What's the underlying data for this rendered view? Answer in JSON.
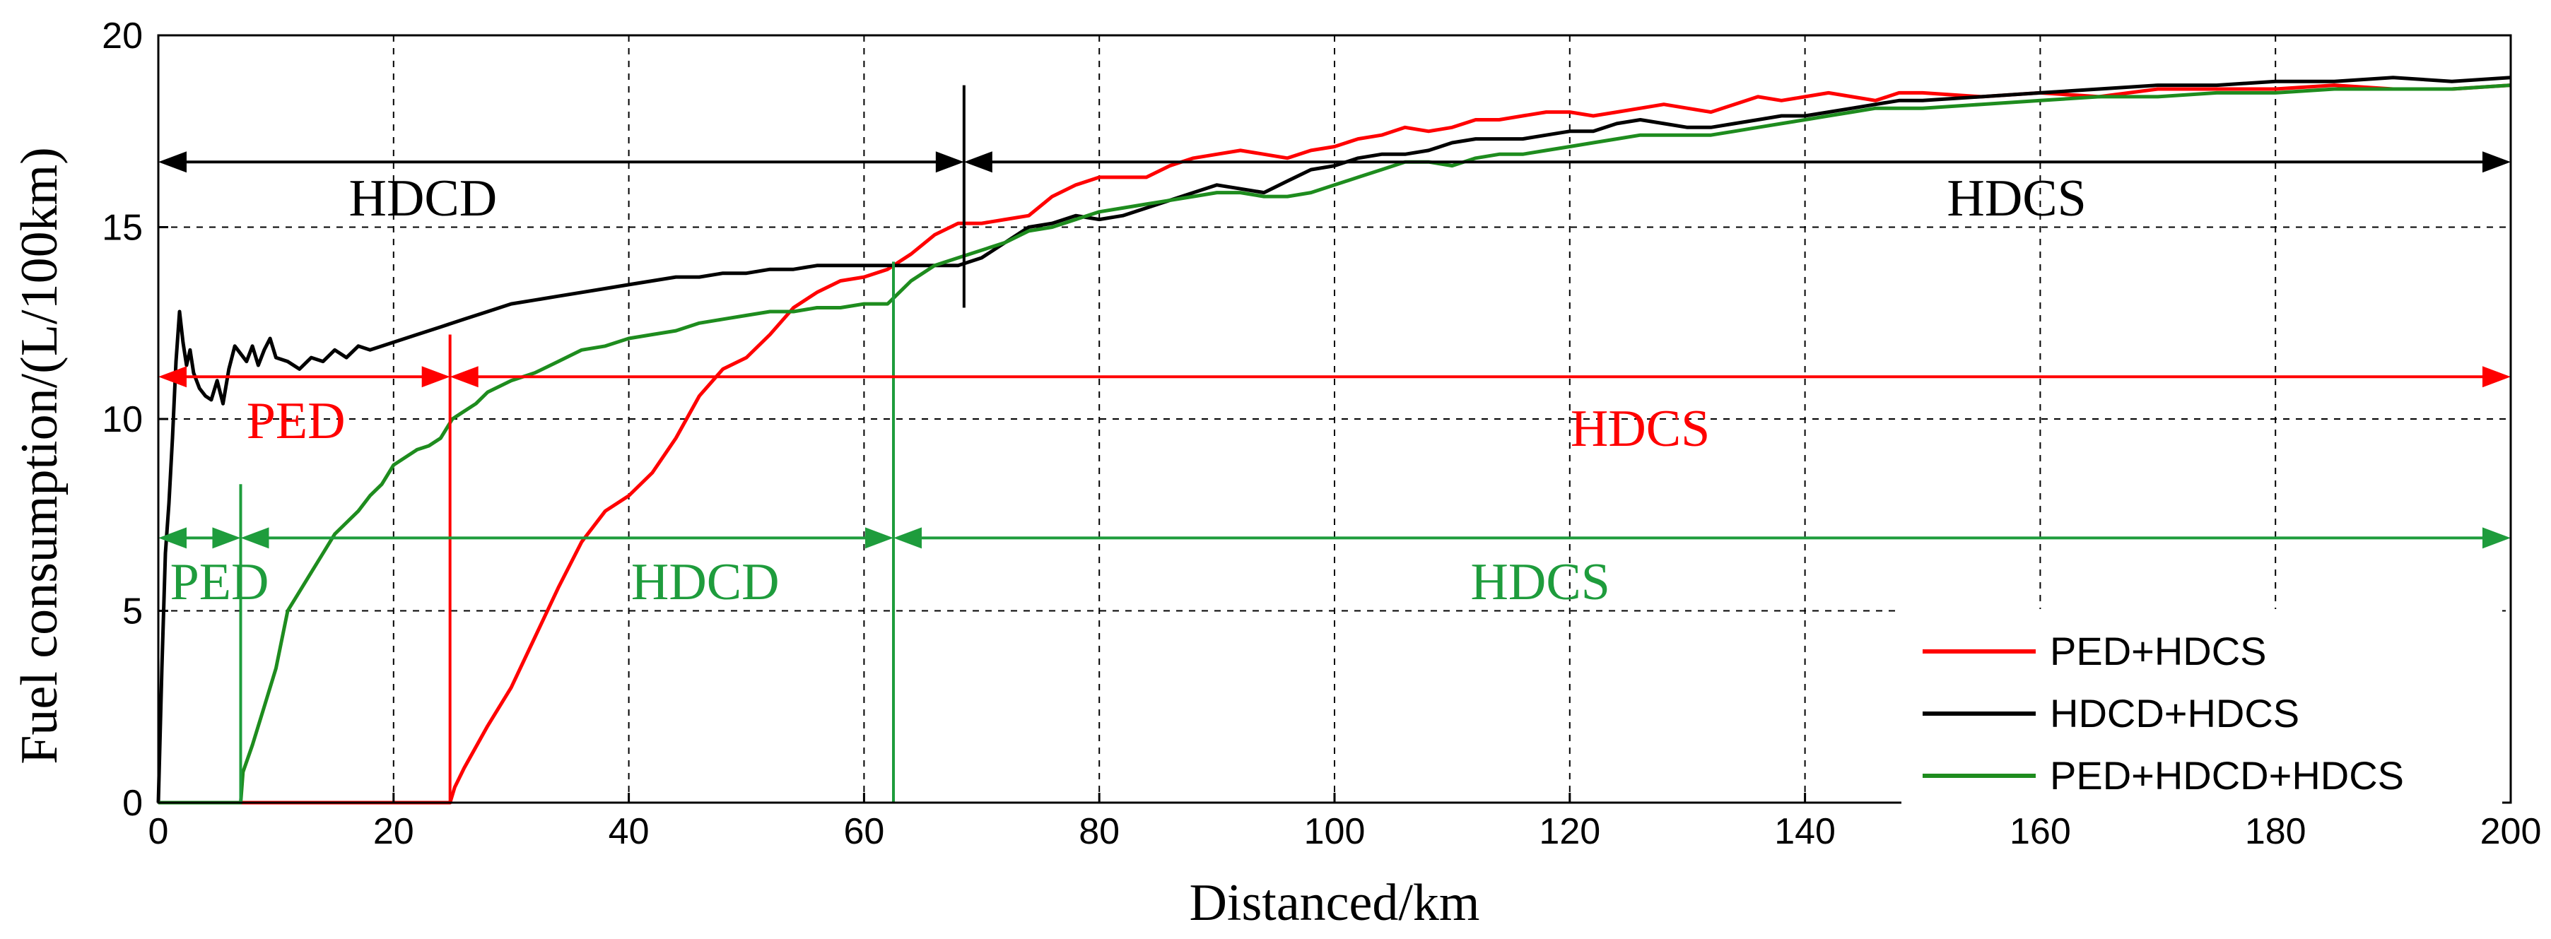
{
  "chart_data": {
    "type": "line",
    "xlabel": "Distanced/km",
    "ylabel": "Fuel consumption/(L/100km)",
    "xlim": [
      0,
      200
    ],
    "ylim": [
      0,
      20
    ],
    "x_ticks": [
      "0",
      "20",
      "40",
      "60",
      "80",
      "100",
      "120",
      "140",
      "160",
      "180",
      "200"
    ],
    "y_ticks": [
      "0",
      "5",
      "10",
      "15",
      "20"
    ],
    "grid": true,
    "legend_position": "bottom-right",
    "series": [
      {
        "name": "PED+HDCS",
        "color": "#ff0000",
        "points": [
          [
            0,
            0
          ],
          [
            24.8,
            0
          ],
          [
            25.2,
            0.4
          ],
          [
            26,
            0.9
          ],
          [
            28,
            2
          ],
          [
            30,
            3
          ],
          [
            32,
            4.3
          ],
          [
            34,
            5.6
          ],
          [
            36,
            6.8
          ],
          [
            38,
            7.6
          ],
          [
            40,
            8
          ],
          [
            42,
            8.6
          ],
          [
            44,
            9.5
          ],
          [
            46,
            10.6
          ],
          [
            48,
            11.3
          ],
          [
            50,
            11.6
          ],
          [
            52,
            12.2
          ],
          [
            54,
            12.9
          ],
          [
            56,
            13.3
          ],
          [
            58,
            13.6
          ],
          [
            60,
            13.7
          ],
          [
            62,
            13.9
          ],
          [
            64,
            14.3
          ],
          [
            66,
            14.8
          ],
          [
            68,
            15.1
          ],
          [
            70,
            15.1
          ],
          [
            72,
            15.2
          ],
          [
            74,
            15.3
          ],
          [
            76,
            15.8
          ],
          [
            78,
            16.1
          ],
          [
            80,
            16.3
          ],
          [
            82,
            16.3
          ],
          [
            84,
            16.3
          ],
          [
            86,
            16.6
          ],
          [
            88,
            16.8
          ],
          [
            90,
            16.9
          ],
          [
            92,
            17.0
          ],
          [
            94,
            16.9
          ],
          [
            96,
            16.8
          ],
          [
            98,
            17.0
          ],
          [
            100,
            17.1
          ],
          [
            102,
            17.3
          ],
          [
            104,
            17.4
          ],
          [
            106,
            17.6
          ],
          [
            108,
            17.5
          ],
          [
            110,
            17.6
          ],
          [
            112,
            17.8
          ],
          [
            114,
            17.8
          ],
          [
            116,
            17.9
          ],
          [
            118,
            18.0
          ],
          [
            120,
            18.0
          ],
          [
            122,
            17.9
          ],
          [
            124,
            18.0
          ],
          [
            126,
            18.1
          ],
          [
            128,
            18.2
          ],
          [
            130,
            18.1
          ],
          [
            132,
            18.0
          ],
          [
            134,
            18.2
          ],
          [
            136,
            18.4
          ],
          [
            138,
            18.3
          ],
          [
            140,
            18.4
          ],
          [
            142,
            18.5
          ],
          [
            144,
            18.4
          ],
          [
            146,
            18.3
          ],
          [
            148,
            18.5
          ],
          [
            150,
            18.5
          ],
          [
            155,
            18.4
          ],
          [
            160,
            18.5
          ],
          [
            165,
            18.4
          ],
          [
            170,
            18.6
          ],
          [
            175,
            18.6
          ],
          [
            180,
            18.6
          ],
          [
            185,
            18.7
          ],
          [
            190,
            18.6
          ],
          [
            195,
            18.6
          ],
          [
            200,
            18.7
          ]
        ]
      },
      {
        "name": "HDCD+HDCS",
        "color": "#000000",
        "points": [
          [
            0,
            0
          ],
          [
            0.3,
            3.5
          ],
          [
            0.6,
            6.5
          ],
          [
            0.9,
            7.8
          ],
          [
            1.2,
            9.5
          ],
          [
            1.5,
            11.5
          ],
          [
            1.8,
            12.8
          ],
          [
            2.1,
            12
          ],
          [
            2.4,
            11.4
          ],
          [
            2.7,
            11.8
          ],
          [
            3,
            11.2
          ],
          [
            3.5,
            10.8
          ],
          [
            4,
            10.6
          ],
          [
            4.5,
            10.5
          ],
          [
            5,
            11
          ],
          [
            5.5,
            10.4
          ],
          [
            6,
            11.3
          ],
          [
            6.5,
            11.9
          ],
          [
            7,
            11.7
          ],
          [
            7.5,
            11.5
          ],
          [
            8,
            11.9
          ],
          [
            8.5,
            11.4
          ],
          [
            9,
            11.8
          ],
          [
            9.5,
            12.1
          ],
          [
            10,
            11.6
          ],
          [
            11,
            11.5
          ],
          [
            12,
            11.3
          ],
          [
            13,
            11.6
          ],
          [
            14,
            11.5
          ],
          [
            15,
            11.8
          ],
          [
            16,
            11.6
          ],
          [
            17,
            11.9
          ],
          [
            18,
            11.8
          ],
          [
            20,
            12
          ],
          [
            22,
            12.2
          ],
          [
            24,
            12.4
          ],
          [
            26,
            12.6
          ],
          [
            28,
            12.8
          ],
          [
            30,
            13
          ],
          [
            32,
            13.1
          ],
          [
            34,
            13.2
          ],
          [
            36,
            13.3
          ],
          [
            38,
            13.4
          ],
          [
            40,
            13.5
          ],
          [
            42,
            13.6
          ],
          [
            44,
            13.7
          ],
          [
            46,
            13.7
          ],
          [
            48,
            13.8
          ],
          [
            50,
            13.8
          ],
          [
            52,
            13.9
          ],
          [
            54,
            13.9
          ],
          [
            56,
            14
          ],
          [
            58,
            14
          ],
          [
            60,
            14
          ],
          [
            62,
            14
          ],
          [
            64,
            14
          ],
          [
            66,
            14
          ],
          [
            68,
            14
          ],
          [
            70,
            14.2
          ],
          [
            72,
            14.6
          ],
          [
            74,
            15
          ],
          [
            76,
            15.1
          ],
          [
            78,
            15.3
          ],
          [
            80,
            15.2
          ],
          [
            82,
            15.3
          ],
          [
            84,
            15.5
          ],
          [
            86,
            15.7
          ],
          [
            88,
            15.9
          ],
          [
            90,
            16.1
          ],
          [
            92,
            16.0
          ],
          [
            94,
            15.9
          ],
          [
            96,
            16.2
          ],
          [
            98,
            16.5
          ],
          [
            100,
            16.6
          ],
          [
            102,
            16.8
          ],
          [
            104,
            16.9
          ],
          [
            106,
            16.9
          ],
          [
            108,
            17.0
          ],
          [
            110,
            17.2
          ],
          [
            112,
            17.3
          ],
          [
            114,
            17.3
          ],
          [
            116,
            17.3
          ],
          [
            118,
            17.4
          ],
          [
            120,
            17.5
          ],
          [
            122,
            17.5
          ],
          [
            124,
            17.7
          ],
          [
            126,
            17.8
          ],
          [
            128,
            17.7
          ],
          [
            130,
            17.6
          ],
          [
            132,
            17.6
          ],
          [
            134,
            17.7
          ],
          [
            136,
            17.8
          ],
          [
            138,
            17.9
          ],
          [
            140,
            17.9
          ],
          [
            142,
            18.0
          ],
          [
            144,
            18.1
          ],
          [
            146,
            18.2
          ],
          [
            148,
            18.3
          ],
          [
            150,
            18.3
          ],
          [
            155,
            18.4
          ],
          [
            160,
            18.5
          ],
          [
            165,
            18.6
          ],
          [
            170,
            18.7
          ],
          [
            175,
            18.7
          ],
          [
            180,
            18.8
          ],
          [
            185,
            18.8
          ],
          [
            190,
            18.9
          ],
          [
            195,
            18.8
          ],
          [
            200,
            18.9
          ]
        ]
      },
      {
        "name": "PED+HDCD+HDCS",
        "color": "#1e8c1e",
        "points": [
          [
            0,
            0
          ],
          [
            7,
            0
          ],
          [
            7.2,
            0.8
          ],
          [
            8,
            1.5
          ],
          [
            9,
            2.5
          ],
          [
            10,
            3.5
          ],
          [
            11,
            5
          ],
          [
            12,
            5.5
          ],
          [
            13,
            6
          ],
          [
            14,
            6.5
          ],
          [
            15,
            7
          ],
          [
            16,
            7.3
          ],
          [
            17,
            7.6
          ],
          [
            18,
            8
          ],
          [
            19,
            8.3
          ],
          [
            20,
            8.8
          ],
          [
            21,
            9
          ],
          [
            22,
            9.2
          ],
          [
            23,
            9.3
          ],
          [
            24,
            9.5
          ],
          [
            25,
            10
          ],
          [
            26,
            10.2
          ],
          [
            27,
            10.4
          ],
          [
            28,
            10.7
          ],
          [
            30,
            11
          ],
          [
            32,
            11.2
          ],
          [
            34,
            11.5
          ],
          [
            36,
            11.8
          ],
          [
            38,
            11.9
          ],
          [
            40,
            12.1
          ],
          [
            42,
            12.2
          ],
          [
            44,
            12.3
          ],
          [
            46,
            12.5
          ],
          [
            48,
            12.6
          ],
          [
            50,
            12.7
          ],
          [
            52,
            12.8
          ],
          [
            54,
            12.8
          ],
          [
            56,
            12.9
          ],
          [
            58,
            12.9
          ],
          [
            60,
            13
          ],
          [
            62,
            13
          ],
          [
            64,
            13.6
          ],
          [
            66,
            14
          ],
          [
            68,
            14.2
          ],
          [
            70,
            14.4
          ],
          [
            72,
            14.6
          ],
          [
            74,
            14.9
          ],
          [
            76,
            15.0
          ],
          [
            78,
            15.2
          ],
          [
            80,
            15.4
          ],
          [
            82,
            15.5
          ],
          [
            84,
            15.6
          ],
          [
            86,
            15.7
          ],
          [
            88,
            15.8
          ],
          [
            90,
            15.9
          ],
          [
            92,
            15.9
          ],
          [
            94,
            15.8
          ],
          [
            96,
            15.8
          ],
          [
            98,
            15.9
          ],
          [
            100,
            16.1
          ],
          [
            102,
            16.3
          ],
          [
            104,
            16.5
          ],
          [
            106,
            16.7
          ],
          [
            108,
            16.7
          ],
          [
            110,
            16.6
          ],
          [
            112,
            16.8
          ],
          [
            114,
            16.9
          ],
          [
            116,
            16.9
          ],
          [
            118,
            17.0
          ],
          [
            120,
            17.1
          ],
          [
            122,
            17.2
          ],
          [
            124,
            17.3
          ],
          [
            126,
            17.4
          ],
          [
            128,
            17.4
          ],
          [
            130,
            17.4
          ],
          [
            132,
            17.4
          ],
          [
            134,
            17.5
          ],
          [
            136,
            17.6
          ],
          [
            138,
            17.7
          ],
          [
            140,
            17.8
          ],
          [
            142,
            17.9
          ],
          [
            144,
            18.0
          ],
          [
            146,
            18.1
          ],
          [
            148,
            18.1
          ],
          [
            150,
            18.1
          ],
          [
            155,
            18.2
          ],
          [
            160,
            18.3
          ],
          [
            165,
            18.4
          ],
          [
            170,
            18.4
          ],
          [
            175,
            18.5
          ],
          [
            180,
            18.5
          ],
          [
            185,
            18.6
          ],
          [
            190,
            18.6
          ],
          [
            195,
            18.6
          ],
          [
            200,
            18.7
          ]
        ]
      }
    ],
    "annotations": [
      {
        "text": "HDCD",
        "color": "#000000",
        "x_start": 0,
        "x_end": 68.5,
        "arrow_y": 16.7,
        "label_x": 22.5,
        "label_y": 15.3
      },
      {
        "text": "HDCS",
        "color": "#000000",
        "x_start": 68.5,
        "x_end": 200,
        "arrow_y": 16.7,
        "label_x": 158,
        "label_y": 15.3
      },
      {
        "text": "PED",
        "color": "#ff0000",
        "x_start": 0,
        "x_end": 24.8,
        "arrow_y": 11.1,
        "label_x": 11.7,
        "label_y": 9.5
      },
      {
        "text": "HDCS",
        "color": "#ff0000",
        "x_start": 24.8,
        "x_end": 200,
        "arrow_y": 11.1,
        "label_x": 126,
        "label_y": 9.3
      },
      {
        "text": "PED",
        "color": "#1e9c3c",
        "x_start": 0,
        "x_end": 7,
        "arrow_y": 6.9,
        "label_x": 5.2,
        "label_y": 5.3
      },
      {
        "text": "HDCD",
        "color": "#1e9c3c",
        "x_start": 7,
        "x_end": 62.5,
        "arrow_y": 6.9,
        "label_x": 46.5,
        "label_y": 5.3
      },
      {
        "text": "HDCS",
        "color": "#1e9c3c",
        "x_start": 62.5,
        "x_end": 200,
        "arrow_y": 6.9,
        "label_x": 117.5,
        "label_y": 5.3
      }
    ],
    "boundaries": [
      {
        "x": 68.5,
        "y_from": 12.9,
        "y_to": 18.7,
        "color": "#000000"
      },
      {
        "x": 24.8,
        "y_from": 0,
        "y_to": 12.2,
        "color": "#ff0000"
      },
      {
        "x": 7,
        "y_from": 0,
        "y_to": 8.3,
        "color": "#1e9c3c"
      },
      {
        "x": 62.5,
        "y_from": 0,
        "y_to": 14.1,
        "color": "#1e9c3c"
      }
    ]
  }
}
